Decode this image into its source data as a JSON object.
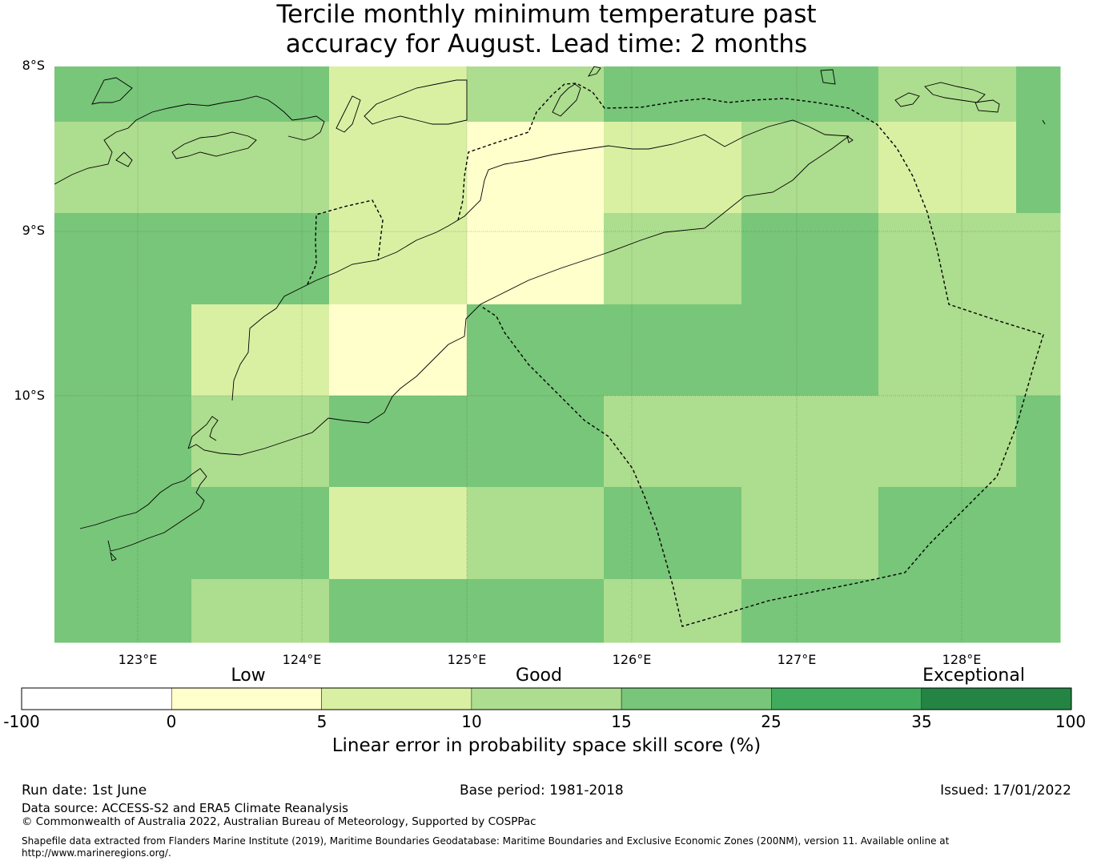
{
  "title": {
    "line1": "Tercile monthly minimum temperature past",
    "line2": "accuracy for August. Lead time: 2 months"
  },
  "map": {
    "lat_labels": [
      "8°S",
      "9°S",
      "10°S"
    ],
    "lon_labels": [
      "123°E",
      "124°E",
      "125°E",
      "126°E",
      "127°E",
      "128°E"
    ],
    "grid_rows": [
      [
        "#78c679",
        "#78c679",
        "#d9f0a3",
        "#addd8e",
        "#78c679",
        "#78c679",
        "#addd8e",
        "#78c679"
      ],
      [
        "#addd8e",
        "#addd8e",
        "#d9f0a3",
        "#ffffcc",
        "#d9f0a3",
        "#addd8e",
        "#d9f0a3",
        "#78c679"
      ],
      [
        "#78c679",
        "#78c679",
        "#d9f0a3",
        "#ffffcc",
        "#addd8e",
        "#78c679",
        "#addd8e",
        "#addd8e"
      ],
      [
        "#78c679",
        "#d9f0a3",
        "#ffffcc",
        "#78c679",
        "#78c679",
        "#78c679",
        "#addd8e",
        "#addd8e"
      ],
      [
        "#78c679",
        "#addd8e",
        "#78c679",
        "#78c679",
        "#addd8e",
        "#addd8e",
        "#addd8e",
        "#78c679"
      ],
      [
        "#78c679",
        "#78c679",
        "#d9f0a3",
        "#addd8e",
        "#78c679",
        "#addd8e",
        "#78c679",
        "#78c679"
      ],
      [
        "#78c679",
        "#addd8e",
        "#78c679",
        "#78c679",
        "#addd8e",
        "#78c679",
        "#78c679",
        "#78c679"
      ]
    ]
  },
  "colorbar": {
    "categories": [
      "Low",
      "Good",
      "Exceptional"
    ],
    "ticks": [
      "-100",
      "0",
      "5",
      "10",
      "15",
      "25",
      "35",
      "100"
    ],
    "colors": [
      "#ffffff",
      "#ffffcc",
      "#d9f0a3",
      "#addd8e",
      "#78c679",
      "#41ab5d",
      "#238443"
    ],
    "label": "Linear error in probability space skill score (%)"
  },
  "footer": {
    "run_date": "Run date: 1st June",
    "base_period": "Base period: 1981-2018",
    "issued": "Issued: 17/01/2022",
    "data_source": "Data source: ACCESS-S2 and ERA5 Climate Reanalysis",
    "copyright": "© Commonwealth of Australia 2022, Australian Bureau of Meteorology, Supported by COSPPac",
    "shapefile_line1": "Shapefile data extracted from Flanders Marine Institute (2019), Maritime Boundaries Geodatabase: Maritime Boundaries and Exclusive Economic Zones (200NM), version 11. Available online at",
    "shapefile_line2": "http://www.marineregions.org/."
  }
}
